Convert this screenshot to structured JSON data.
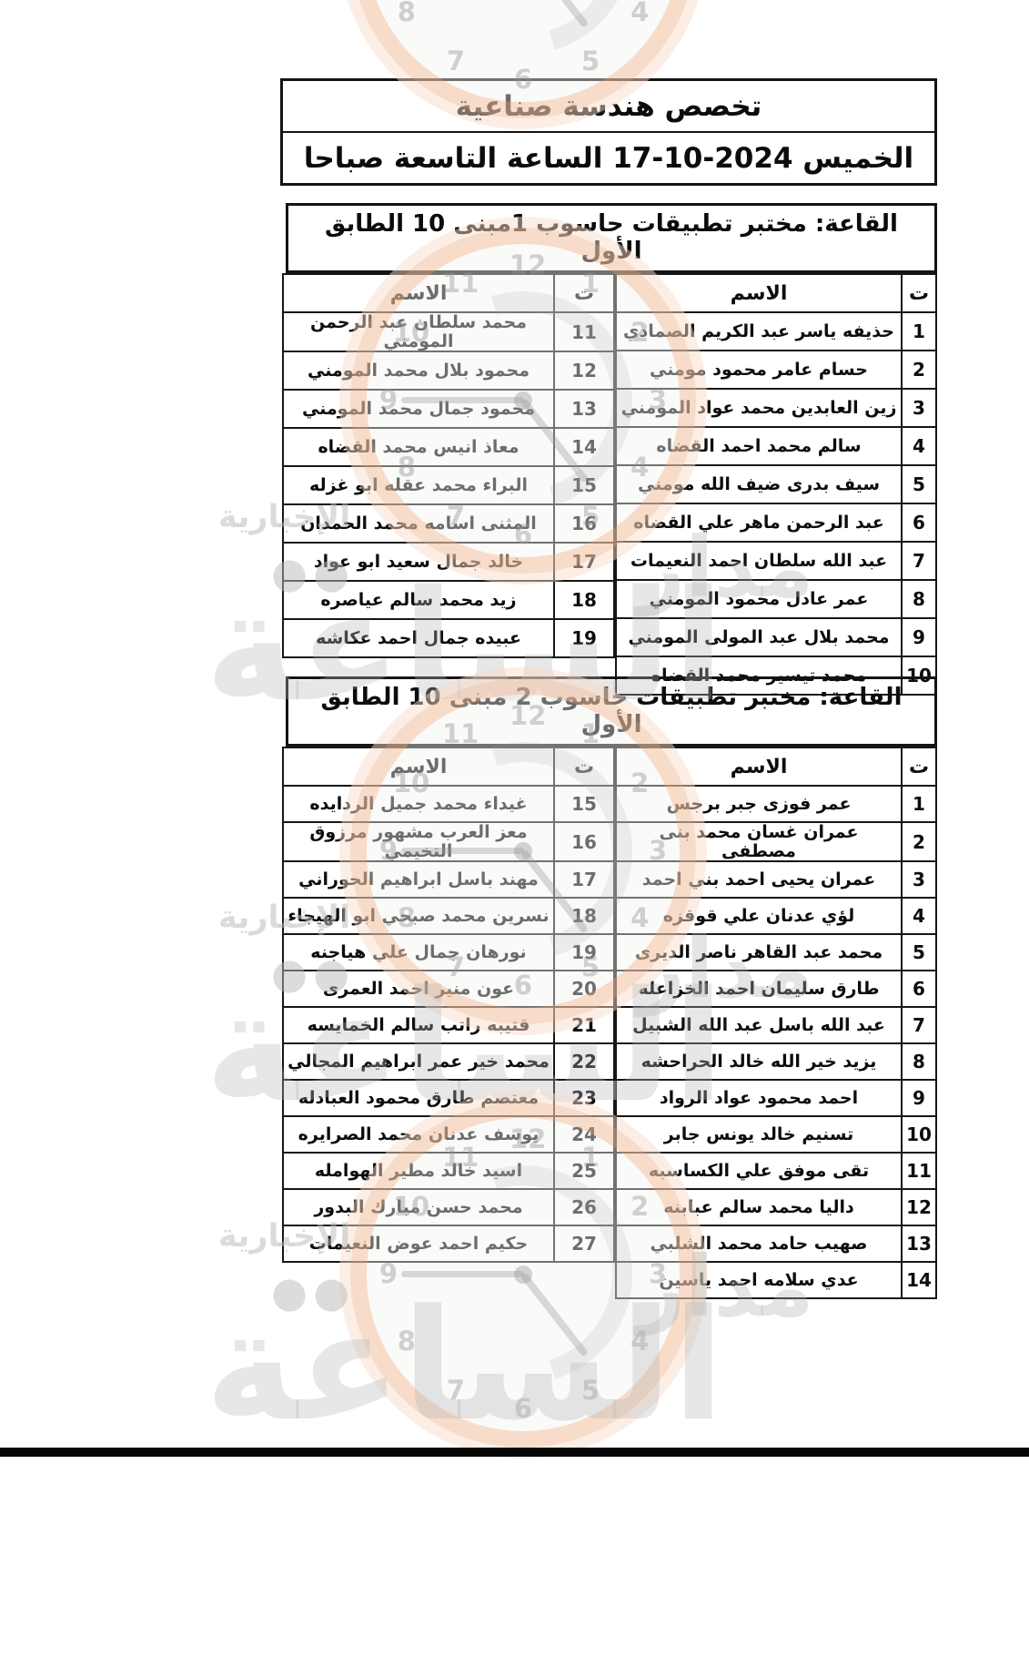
{
  "document": {
    "program_title": "تخصص هندسة صناعية",
    "session_datetime": "الخميس 2024-10-17 الساعة التاسعة صباحا"
  },
  "columns": {
    "num": "ت",
    "name": "الاسم"
  },
  "watermark": {
    "word_madar": "مدار",
    "word_alsaa": "الساعة",
    "word_news": "الإخبارية",
    "accent_color": "#f1a06e",
    "text_color": "#bdbdbd"
  },
  "tables": [
    {
      "room": "القاعة: مختبر تطبيقات حاسوب 1مبنى 10 الطابق الأول",
      "right_rows": [
        {
          "n": "1",
          "name": "حذيفه ياسر عبد الكريم الصمادي"
        },
        {
          "n": "2",
          "name": "حسام عامر محمود مومني"
        },
        {
          "n": "3",
          "name": "زين العابدين محمد عواد المومني"
        },
        {
          "n": "4",
          "name": "سالم محمد احمد القضاه"
        },
        {
          "n": "5",
          "name": "سيف بدرى ضيف الله مومني"
        },
        {
          "n": "6",
          "name": "عبد الرحمن ماهر علي القضاه"
        },
        {
          "n": "7",
          "name": "عبد الله سلطان احمد النعيمات"
        },
        {
          "n": "8",
          "name": "عمر عادل محمود المومني"
        },
        {
          "n": "9",
          "name": "محمد بلال عبد المولى المومني"
        },
        {
          "n": "10",
          "name": "محمد تيسير محمد القضاه"
        }
      ],
      "left_rows": [
        {
          "n": "11",
          "name": "محمد سلطان عبد الرحمن المومني"
        },
        {
          "n": "12",
          "name": "محمود بلال محمد المومني"
        },
        {
          "n": "13",
          "name": "محمود جمال محمد المومني"
        },
        {
          "n": "14",
          "name": "معاذ انيس محمد القضاه"
        },
        {
          "n": "15",
          "name": "البراء محمد عقله ابو غزله"
        },
        {
          "n": "16",
          "name": "المثنى اسامه محمد الحمدان"
        },
        {
          "n": "17",
          "name": "خالد جمال سعيد ابو عواد"
        },
        {
          "n": "18",
          "name": "زيد محمد سالم عياصره"
        },
        {
          "n": "19",
          "name": "عبيده جمال احمد عكاشه"
        }
      ]
    },
    {
      "room": "القاعة: مختبر تطبيقات حاسوب 2 مبنى 10 الطابق الأول",
      "right_rows": [
        {
          "n": "1",
          "name": "عمر فوزى جبر برجس"
        },
        {
          "n": "2",
          "name": "عمران غسان محمد بنى مصطفى"
        },
        {
          "n": "3",
          "name": "عمران يحيى احمد بني احمد"
        },
        {
          "n": "4",
          "name": "لؤي عدنان علي قوقزه"
        },
        {
          "n": "5",
          "name": "محمد عبد القاهر ناصر الديرى"
        },
        {
          "n": "6",
          "name": "طارق سليمان احمد الخزاعله"
        },
        {
          "n": "7",
          "name": "عبد الله باسل عبد الله الشبيل"
        },
        {
          "n": "8",
          "name": "يزيد خير الله خالد الحراحشه"
        },
        {
          "n": "9",
          "name": "احمد محمود عواد الرواد"
        },
        {
          "n": "10",
          "name": "تسنيم خالد يونس جابر"
        },
        {
          "n": "11",
          "name": "تقى موفق علي الكساسبه"
        },
        {
          "n": "12",
          "name": "داليا محمد سالم عبابنه"
        },
        {
          "n": "13",
          "name": "صهيب حامد محمد الشلبي"
        },
        {
          "n": "14",
          "name": "عدي سلامه احمد ياسين"
        }
      ],
      "left_rows": [
        {
          "n": "15",
          "name": "غيداء محمد جميل الردايده"
        },
        {
          "n": "16",
          "name": "معز العرب مشهور مرزوق التخيمي"
        },
        {
          "n": "17",
          "name": "مهند باسل ابراهيم الحوراني"
        },
        {
          "n": "18",
          "name": "نسرين محمد صبحي ابو الهيجاء"
        },
        {
          "n": "19",
          "name": "نورهان جمال علي هياجنه"
        },
        {
          "n": "20",
          "name": "عون منير احمد العمرى"
        },
        {
          "n": "21",
          "name": "قتيبه راتب سالم الخمايسه"
        },
        {
          "n": "22",
          "name": "محمد خير عمر ابراهيم المجالي"
        },
        {
          "n": "23",
          "name": "معتصم طارق محمود العبادله"
        },
        {
          "n": "24",
          "name": "يوسف عدنان محمد الصرايره"
        },
        {
          "n": "25",
          "name": "اسيد خالد مطير الهوامله"
        },
        {
          "n": "26",
          "name": "محمد حسن مبارك البدور"
        },
        {
          "n": "27",
          "name": "حكيم احمد عوض النعيمات"
        }
      ]
    }
  ]
}
